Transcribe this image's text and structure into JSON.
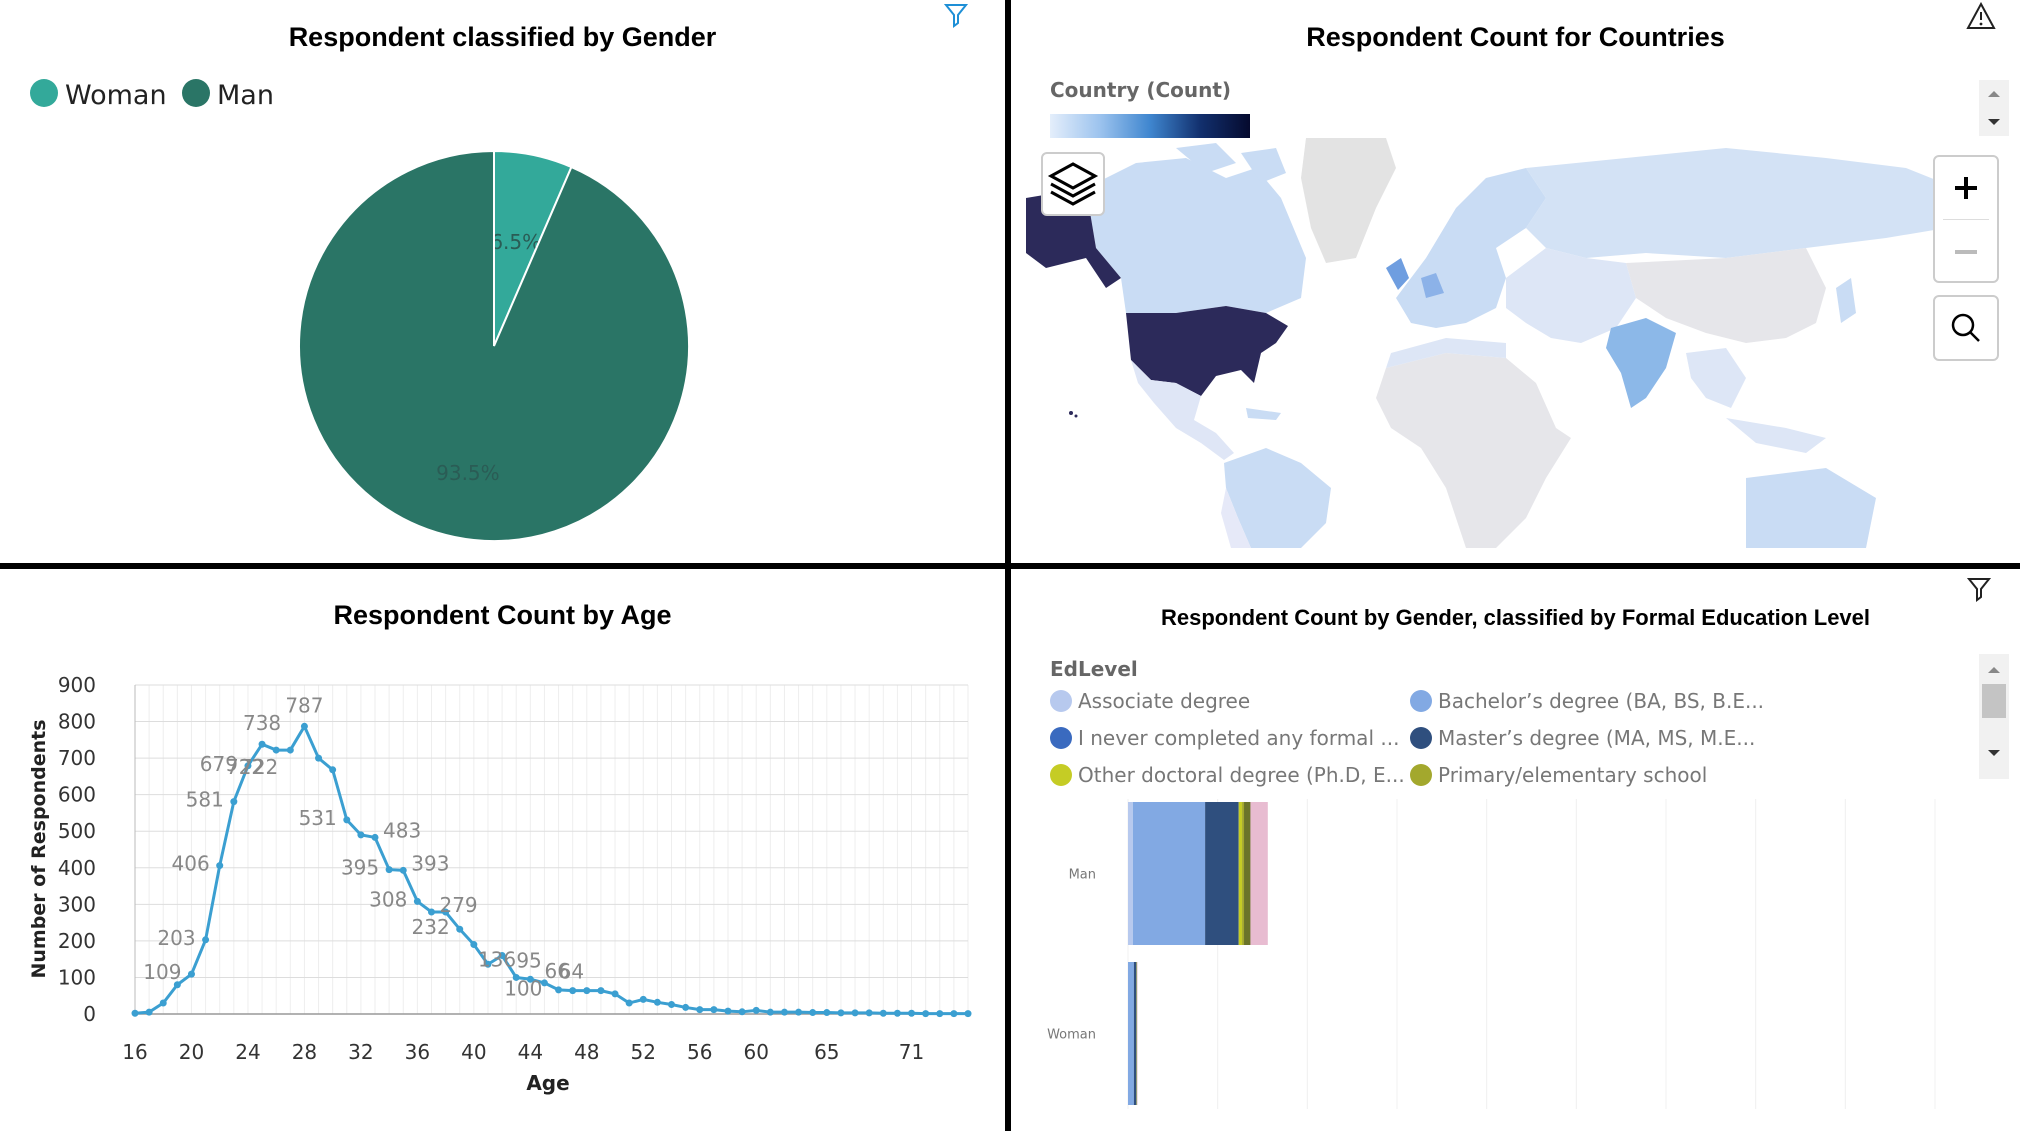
{
  "gender_panel": {
    "title": "Respondent classified by Gender",
    "icon": "filter-icon",
    "colors": {
      "Woman": "#33a99a",
      "Man": "#2a7566"
    }
  },
  "country_panel": {
    "title": "Respondent Count for Countries",
    "legend_title": "Country (Count)",
    "icons": [
      "warning-icon",
      "layers-icon",
      "zoom-in-icon",
      "zoom-out-icon",
      "search-icon",
      "scroll-up-icon",
      "scroll-down-icon"
    ],
    "colors": {
      "low": "#e0ebfb",
      "high": "#0a1445",
      "usa": "#2c2a5a",
      "india": "#8cb8e8"
    }
  },
  "age_panel": {
    "title": "Respondent Count by Age",
    "line_color": "#3b9fd1"
  },
  "edu_panel": {
    "title": "Respondent Count by Gender, classified by Formal Education Level",
    "legend_title": "EdLevel",
    "icons": [
      "filter-icon",
      "scroll-up-icon",
      "scroll-down-icon"
    ]
  },
  "chart_data": [
    {
      "type": "pie",
      "title": "Respondent classified by Gender",
      "legend_position": "top-left",
      "slices": [
        {
          "label": "Woman",
          "value": 6.5,
          "display": "6.5%"
        },
        {
          "label": "Man",
          "value": 93.5,
          "display": "93.5%"
        }
      ]
    },
    {
      "type": "heatmap",
      "title": "Respondent Count for Countries",
      "legend_title": "Country (Count)"
    },
    {
      "type": "line",
      "title": "Respondent Count by Age",
      "xlabel": "Age",
      "ylabel": "Number of Respondents",
      "xlim": [
        16,
        75
      ],
      "ylim": [
        0,
        900
      ],
      "x_ticks": [
        "16",
        "20",
        "24",
        "28",
        "32",
        "36",
        "40",
        "44",
        "48",
        "52",
        "56",
        "60",
        "65",
        "71"
      ],
      "y_ticks": [
        "0",
        "100",
        "200",
        "300",
        "400",
        "500",
        "600",
        "700",
        "800",
        "900"
      ],
      "grid": true,
      "x": [
        16,
        17,
        18,
        19,
        20,
        21,
        22,
        23,
        24,
        25,
        26,
        27,
        28,
        29,
        30,
        31,
        32,
        33,
        34,
        35,
        36,
        37,
        38,
        39,
        40,
        41,
        42,
        43,
        44,
        45,
        46,
        47,
        48,
        49,
        50,
        51,
        52,
        53,
        54,
        55,
        56,
        57,
        58,
        59,
        60,
        61,
        62,
        63,
        64,
        65,
        66,
        67,
        68,
        69,
        70,
        71,
        72,
        73,
        74,
        75
      ],
      "y": [
        2,
        5,
        30,
        80,
        109,
        203,
        406,
        581,
        679,
        738,
        722,
        722,
        787,
        700,
        668,
        531,
        490,
        483,
        395,
        393,
        308,
        279,
        279,
        232,
        190,
        136,
        160,
        100,
        95,
        85,
        66,
        64,
        64,
        64,
        55,
        30,
        40,
        32,
        26,
        18,
        12,
        12,
        8,
        6,
        10,
        5,
        5,
        5,
        4,
        4,
        3,
        3,
        3,
        2,
        2,
        2,
        1,
        1,
        1,
        1
      ],
      "labeled_points": [
        {
          "x": 20,
          "label": "109"
        },
        {
          "x": 21,
          "label": "203"
        },
        {
          "x": 22,
          "label": "406"
        },
        {
          "x": 23,
          "label": "581"
        },
        {
          "x": 24,
          "label": "679"
        },
        {
          "x": 25,
          "label": "738"
        },
        {
          "x": 26,
          "label": "722"
        },
        {
          "x": 27,
          "label": "722"
        },
        {
          "x": 28,
          "label": "787"
        },
        {
          "x": 31,
          "label": "531"
        },
        {
          "x": 33,
          "label": "483"
        },
        {
          "x": 34,
          "label": "395"
        },
        {
          "x": 35,
          "label": "393"
        },
        {
          "x": 36,
          "label": "308"
        },
        {
          "x": 37,
          "label": "279"
        },
        {
          "x": 39,
          "label": "232"
        },
        {
          "x": 41,
          "label": "136"
        },
        {
          "x": 43,
          "label": "100"
        },
        {
          "x": 44,
          "label": "95"
        },
        {
          "x": 46,
          "label": "66"
        },
        {
          "x": 47,
          "label": "64"
        }
      ]
    },
    {
      "type": "bar",
      "orientation": "horizontal",
      "stacked": true,
      "title": "Respondent Count by Gender, classified by Formal Education Level",
      "legend_title": "EdLevel",
      "legend_position": "top",
      "categories": [
        "Man",
        "Woman"
      ],
      "legend": [
        {
          "name": "Associate degree",
          "color": "#b7c9ee"
        },
        {
          "name": "Bachelor’s degree (BA, BS, B.E...",
          "color": "#82a9e3"
        },
        {
          "name": "I never completed any formal ...",
          "color": "#3a6abf"
        },
        {
          "name": "Master’s degree (MA, MS, M.E...",
          "color": "#2f4f7e"
        },
        {
          "name": "Other doctoral degree (Ph.D, E...",
          "color": "#c5cc25"
        },
        {
          "name": "Primary/elementary school",
          "color": "#a3a82d"
        }
      ],
      "series": [
        {
          "color": "#b7c9ee",
          "values": [
            175,
            0
          ]
        },
        {
          "color": "#82a9e3",
          "values": [
            2580,
            210
          ]
        },
        {
          "color": "#2f4f7e",
          "values": [
            1200,
            90
          ]
        },
        {
          "color": "#c5cc25",
          "values": [
            120,
            8
          ]
        },
        {
          "color": "#a3a82d",
          "values": [
            70,
            6
          ]
        },
        {
          "color": "#6b7429",
          "values": [
            230,
            12
          ]
        },
        {
          "color": "#e8bcd1",
          "values": [
            620,
            16
          ]
        }
      ],
      "xlim": [
        0,
        5000
      ],
      "grid": true
    }
  ]
}
